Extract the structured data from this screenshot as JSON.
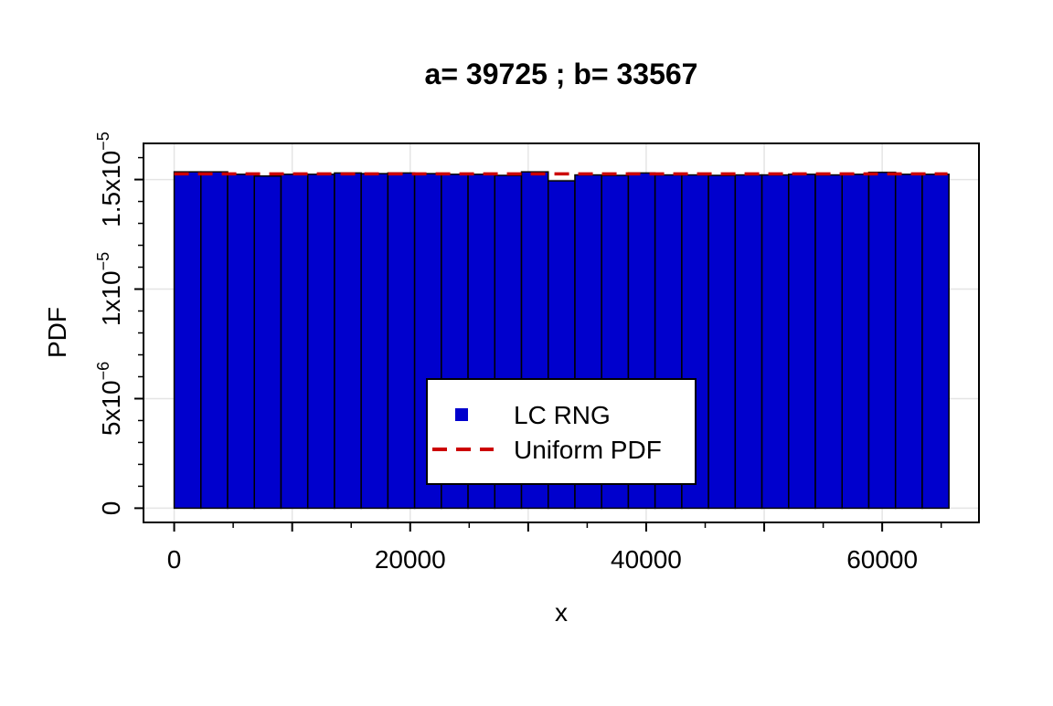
{
  "chart_data": {
    "type": "bar",
    "title": "a= 39725 ; b= 33567",
    "xlabel": "x",
    "ylabel": "PDF",
    "xlim": [
      -2600,
      68200
    ],
    "ylim": [
      -6.5e-07,
      1.665e-05
    ],
    "grid": true,
    "bin_width": 2264,
    "bin_start": 0,
    "values": [
      1.535e-05,
      1.535e-05,
      1.524e-05,
      1.516e-05,
      1.524e-05,
      1.524e-05,
      1.53e-05,
      1.527e-05,
      1.53e-05,
      1.527e-05,
      1.524e-05,
      1.524e-05,
      1.519e-05,
      1.535e-05,
      1.494e-05,
      1.521e-05,
      1.519e-05,
      1.53e-05,
      1.521e-05,
      1.521e-05,
      1.519e-05,
      1.521e-05,
      1.521e-05,
      1.524e-05,
      1.521e-05,
      1.524e-05,
      1.533e-05,
      1.524e-05,
      1.524e-05
    ],
    "uniform_pdf": {
      "x": [
        0,
        65536
      ],
      "y": 1.5259e-05
    },
    "x_ticks": [
      {
        "value": 0,
        "label": "0"
      },
      {
        "value": 10000,
        "label": ""
      },
      {
        "value": 20000,
        "label": "20000"
      },
      {
        "value": 30000,
        "label": ""
      },
      {
        "value": 40000,
        "label": "40000"
      },
      {
        "value": 50000,
        "label": ""
      },
      {
        "value": 60000,
        "label": "60000"
      }
    ],
    "x_minor_ticks": [
      5000,
      15000,
      25000,
      35000,
      45000,
      55000,
      65000
    ],
    "y_ticks": [
      {
        "value": 0,
        "label": "0"
      },
      {
        "value": 5e-06,
        "label": "5x10",
        "exp": "−6"
      },
      {
        "value": 1e-05,
        "label": "1x10",
        "exp": "−5"
      },
      {
        "value": 1.5e-05,
        "label": "1.5x10",
        "exp": "−5"
      }
    ],
    "y_minor_ticks": [
      1e-06,
      2e-06,
      3e-06,
      4e-06,
      6e-06,
      7e-06,
      8e-06,
      9e-06,
      1.1e-05,
      1.2e-05,
      1.3e-05,
      1.4e-05,
      1.6e-05
    ],
    "legend": {
      "position": "bottom-center",
      "entries": [
        {
          "label": "LC RNG",
          "symbol": "square",
          "color": "#0000CD"
        },
        {
          "label": "Uniform PDF",
          "symbol": "dashed-line",
          "color": "#CC0000"
        }
      ]
    },
    "colors": {
      "bar_fill": "#0000CD",
      "bar_stroke": "#000000",
      "uniform_line": "#CC0000",
      "grid": "#E5E5E5"
    }
  }
}
